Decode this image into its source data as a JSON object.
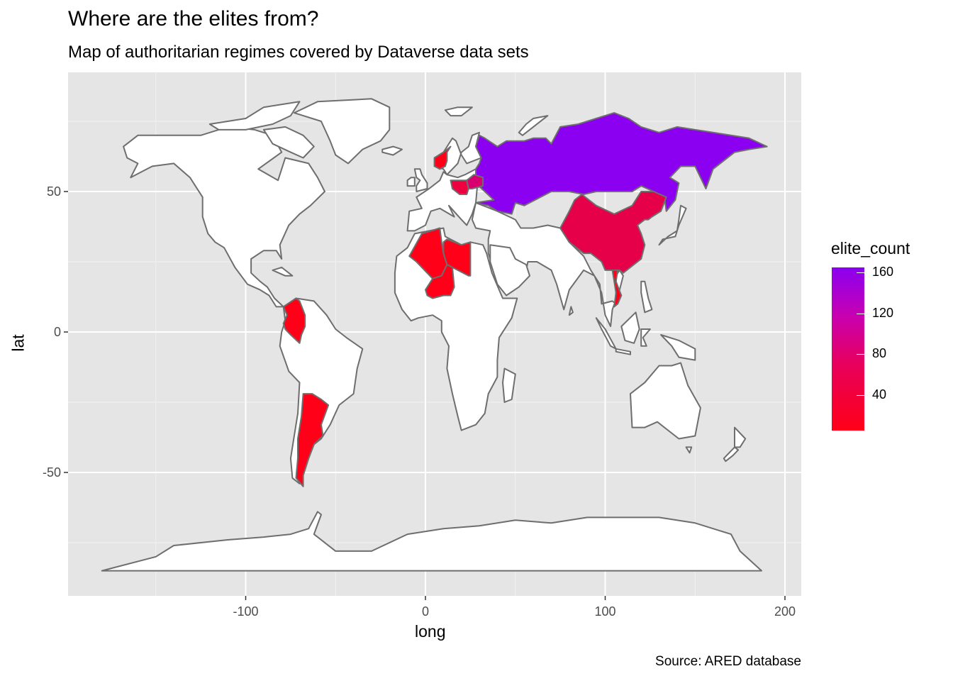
{
  "title": "Where are the elites from?",
  "subtitle": "Map of authoritarian regimes covered by Dataverse data sets",
  "caption": "Source: ARED database",
  "chart_data": {
    "type": "map",
    "xlabel": "long",
    "ylabel": "lat",
    "x_ticks": [
      -100,
      0,
      100,
      200
    ],
    "y_ticks": [
      -50,
      0,
      50
    ],
    "xlim": [
      -200,
      210
    ],
    "ylim": [
      -95,
      85
    ],
    "background": "#e5e5e5",
    "grid": true,
    "legend": {
      "title": "elite_count",
      "ticks": [
        40,
        80,
        120,
        160
      ],
      "range": [
        5,
        165
      ],
      "low_color": "#ff0018",
      "high_color": "#8b00f0",
      "placement": "right"
    },
    "filled_regions": [
      {
        "region": "Russia",
        "color": "#8b00f0"
      },
      {
        "region": "China",
        "color": "#e60049"
      },
      {
        "region": "Algeria",
        "color": "#ff0018"
      },
      {
        "region": "Libya",
        "color": "#ff0018"
      },
      {
        "region": "Niger",
        "color": "#ff0018"
      },
      {
        "region": "Colombia",
        "color": "#ff0018"
      },
      {
        "region": "Argentina",
        "color": "#ff0018"
      },
      {
        "region": "Poland",
        "color": "#ee0040"
      },
      {
        "region": "Belarus",
        "color": "#d8006e"
      },
      {
        "region": "Norway",
        "color": "#ff0018"
      },
      {
        "region": "Vietnam",
        "color": "#ff0018"
      }
    ]
  }
}
